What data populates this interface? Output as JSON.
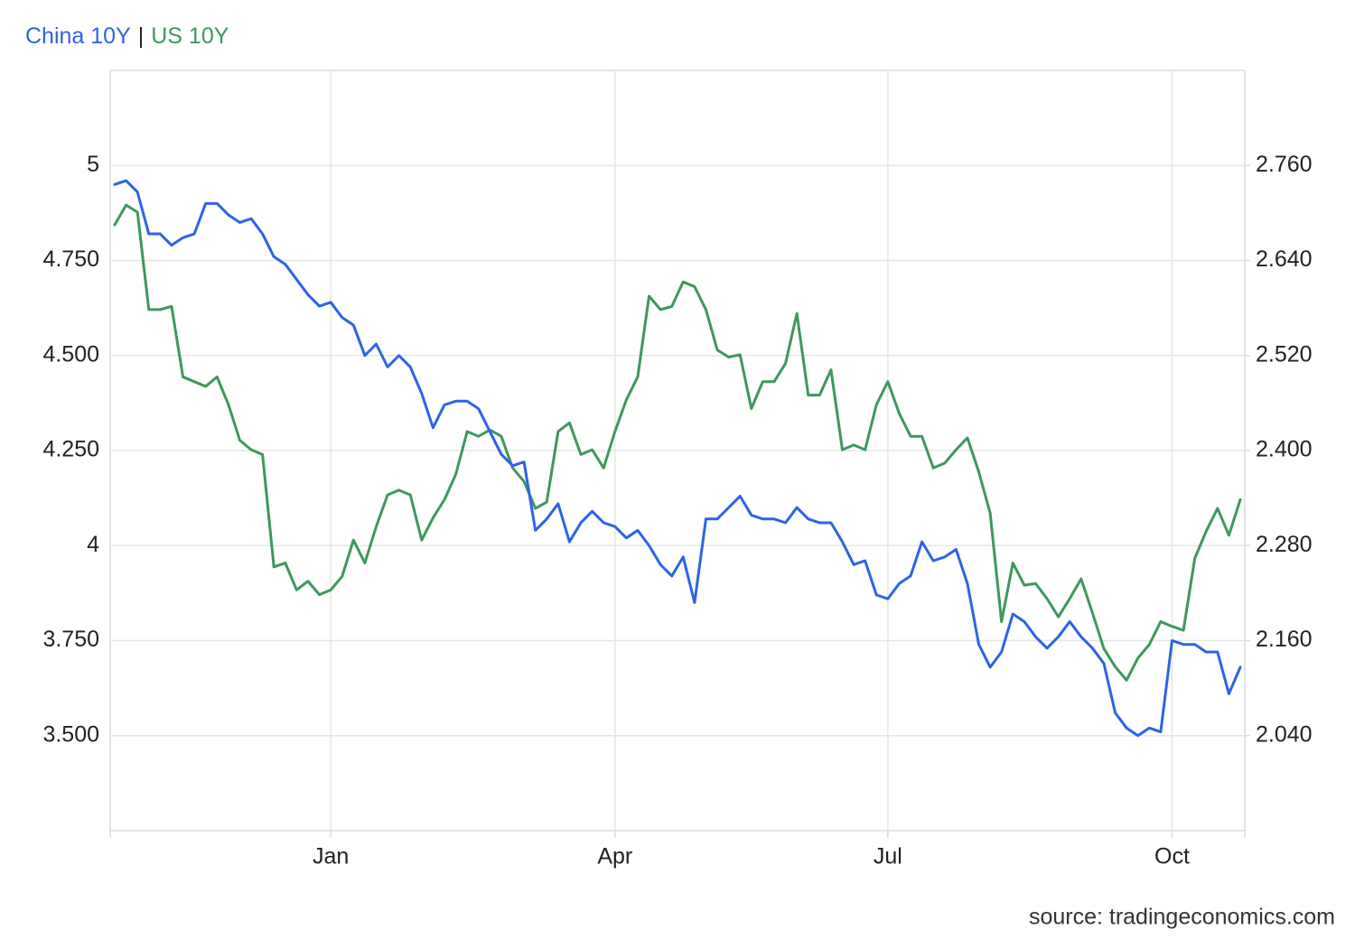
{
  "chart_data": {
    "type": "line",
    "legend_separator": "|",
    "source": "source: tradingeconomics.com",
    "grid": true,
    "categories": [
      null,
      null,
      null,
      null,
      null,
      null,
      null,
      null,
      null,
      null,
      null,
      null,
      null,
      null,
      null,
      null,
      null,
      null,
      null,
      "Jan",
      null,
      null,
      null,
      null,
      null,
      null,
      null,
      null,
      null,
      null,
      null,
      null,
      null,
      null,
      null,
      null,
      null,
      null,
      null,
      null,
      null,
      null,
      null,
      null,
      "Apr",
      null,
      null,
      null,
      null,
      null,
      null,
      null,
      null,
      null,
      null,
      null,
      null,
      null,
      null,
      null,
      null,
      null,
      null,
      null,
      null,
      null,
      null,
      null,
      "Jul",
      null,
      null,
      null,
      null,
      null,
      null,
      null,
      null,
      null,
      null,
      null,
      null,
      null,
      null,
      null,
      null,
      null,
      null,
      null,
      null,
      null,
      null,
      null,
      null,
      "Oct",
      null,
      null,
      null,
      null,
      null,
      null
    ],
    "ylim": [
      3.25,
      5.25
    ],
    "yticks": [
      {
        "value": 3.5,
        "label": "3.500"
      },
      {
        "value": 3.75,
        "label": "3.750"
      },
      4,
      {
        "value": 4.25,
        "label": "4.250"
      },
      {
        "value": 4.5,
        "label": "4.500"
      },
      {
        "value": 4.75,
        "label": "4.750"
      },
      5
    ],
    "y2lim": [
      1.92,
      2.88
    ],
    "y2ticks": [
      {
        "value": 2.04,
        "label": "2.040"
      },
      {
        "value": 2.16,
        "label": "2.160"
      },
      {
        "value": 2.28,
        "label": "2.280"
      },
      {
        "value": 2.4,
        "label": "2.400"
      },
      {
        "value": 2.52,
        "label": "2.520"
      },
      {
        "value": 2.64,
        "label": "2.640"
      },
      {
        "value": 2.76,
        "label": "2.760"
      }
    ],
    "series": [
      {
        "name": "China 10Y",
        "color": "#2f63e4",
        "values": [
          4.95,
          4.96,
          4.93,
          4.82,
          4.82,
          4.79,
          4.81,
          4.82,
          4.9,
          4.9,
          4.87,
          4.85,
          4.86,
          4.82,
          4.76,
          4.74,
          4.7,
          4.66,
          4.63,
          4.64,
          4.6,
          4.58,
          4.5,
          4.53,
          4.47,
          4.5,
          4.47,
          4.4,
          4.31,
          4.37,
          4.38,
          4.38,
          4.36,
          4.3,
          4.24,
          4.21,
          4.22,
          4.04,
          4.07,
          4.11,
          4.01,
          4.06,
          4.09,
          4.06,
          4.05,
          4.02,
          4.04,
          4.0,
          3.95,
          3.92,
          3.97,
          3.85,
          4.07,
          4.07,
          4.1,
          4.13,
          4.08,
          4.07,
          4.07,
          4.06,
          4.1,
          4.07,
          4.06,
          4.06,
          4.01,
          3.95,
          3.96,
          3.87,
          3.86,
          3.9,
          3.92,
          4.01,
          3.96,
          3.97,
          3.99,
          3.9,
          3.74,
          3.68,
          3.72,
          3.82,
          3.8,
          3.76,
          3.73,
          3.76,
          3.8,
          3.76,
          3.73,
          3.69,
          3.56,
          3.52,
          3.5,
          3.52,
          3.51,
          3.75,
          3.74,
          3.74,
          3.72,
          3.72,
          3.61,
          3.68
        ]
      },
      {
        "name": "US 10Y",
        "color": "#3f975d",
        "axis": "y2",
        "values": [
          2.685,
          2.71,
          2.701,
          2.578,
          2.578,
          2.582,
          2.493,
          2.487,
          2.481,
          2.493,
          2.458,
          2.413,
          2.401,
          2.395,
          2.253,
          2.258,
          2.224,
          2.235,
          2.218,
          2.224,
          2.241,
          2.287,
          2.258,
          2.304,
          2.344,
          2.35,
          2.344,
          2.287,
          2.315,
          2.338,
          2.37,
          2.424,
          2.418,
          2.426,
          2.418,
          2.378,
          2.361,
          2.327,
          2.335,
          2.424,
          2.435,
          2.395,
          2.401,
          2.378,
          2.424,
          2.464,
          2.493,
          2.595,
          2.578,
          2.582,
          2.613,
          2.607,
          2.578,
          2.527,
          2.518,
          2.521,
          2.453,
          2.487,
          2.487,
          2.51,
          2.573,
          2.47,
          2.47,
          2.502,
          2.401,
          2.407,
          2.401,
          2.458,
          2.487,
          2.447,
          2.418,
          2.418,
          2.378,
          2.384,
          2.401,
          2.416,
          2.373,
          2.321,
          2.184,
          2.258,
          2.23,
          2.232,
          2.213,
          2.19,
          2.213,
          2.238,
          2.195,
          2.15,
          2.127,
          2.11,
          2.138,
          2.155,
          2.184,
          2.178,
          2.173,
          2.264,
          2.298,
          2.327,
          2.293,
          2.338
        ]
      }
    ]
  }
}
